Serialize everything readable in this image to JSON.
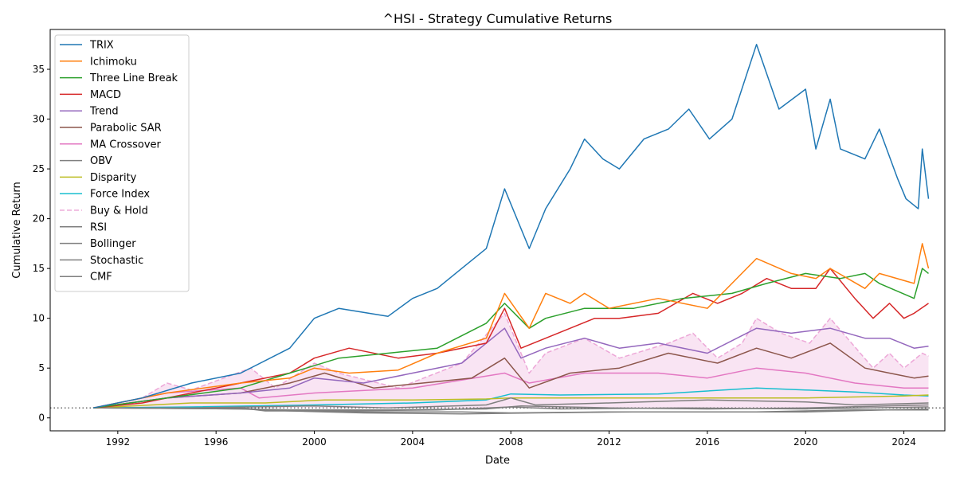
{
  "chart_data": {
    "type": "line",
    "title": "^HSI - Strategy Cumulative Returns",
    "xlabel": "Date",
    "ylabel": "Cumulative Return",
    "x_range": [
      "1989-04-01",
      "2025-09-01"
    ],
    "ylim": [
      -1.3,
      39.0
    ],
    "x_ticks": [
      "1992",
      "1996",
      "2000",
      "2004",
      "2008",
      "2012",
      "2016",
      "2020",
      "2024"
    ],
    "y_ticks": [
      "0",
      "5",
      "10",
      "15",
      "20",
      "25",
      "30",
      "35"
    ],
    "reference_line": {
      "y": 1.0,
      "style": "dotted",
      "color": "#666666"
    },
    "fill_between": {
      "upper": "Buy & Hold",
      "lower": 1.0,
      "color": "#e377c2",
      "opacity": 0.2
    },
    "legend_position": "upper left",
    "grid": false,
    "series": [
      {
        "name": "TRIX",
        "color": "#1f77b4",
        "style": "solid",
        "x": [
          "1991-01",
          "1993-01",
          "1995-01",
          "1997-01",
          "1999-01",
          "2000-01",
          "2001-01",
          "2003-01",
          "2004-01",
          "2005-01",
          "2006-01",
          "2007-01",
          "2007-10",
          "2008-10",
          "2009-06",
          "2010-06",
          "2011-01",
          "2011-10",
          "2012-06",
          "2013-06",
          "2014-06",
          "2015-04",
          "2016-02",
          "2017-01",
          "2018-01",
          "2018-12",
          "2020-01",
          "2020-06",
          "2021-01",
          "2021-06",
          "2022-06",
          "2023-01",
          "2023-10",
          "2024-02",
          "2024-08",
          "2024-10",
          "2025-01"
        ],
        "y": [
          1.0,
          2.0,
          3.5,
          4.5,
          7.0,
          10.0,
          11.0,
          10.2,
          12.0,
          13.0,
          15.0,
          17.0,
          23.0,
          17.0,
          21.0,
          25.0,
          28.0,
          26.0,
          25.0,
          28.0,
          29.0,
          31.0,
          28.0,
          30.0,
          37.5,
          31.0,
          33.0,
          27.0,
          32.0,
          27.0,
          26.0,
          29.0,
          24.0,
          22.0,
          21.0,
          27.0,
          22.0
        ]
      },
      {
        "name": "Ichimoku",
        "color": "#ff7f0e",
        "style": "solid",
        "x": [
          "1991-01",
          "1994-01",
          "1997-01",
          "1999-01",
          "2000-01",
          "2001-06",
          "2003-06",
          "2005-01",
          "2007-01",
          "2007-10",
          "2008-10",
          "2009-06",
          "2010-06",
          "2011-01",
          "2012-01",
          "2014-01",
          "2016-01",
          "2018-01",
          "2019-06",
          "2020-06",
          "2021-01",
          "2022-06",
          "2023-01",
          "2024-06",
          "2024-10",
          "2025-01"
        ],
        "y": [
          1.0,
          2.5,
          3.5,
          4.0,
          5.0,
          4.5,
          4.8,
          6.5,
          8.0,
          12.5,
          9.0,
          12.5,
          11.5,
          12.5,
          11.0,
          12.0,
          11.0,
          16.0,
          14.5,
          14.0,
          15.0,
          13.0,
          14.5,
          13.5,
          17.5,
          15.0
        ]
      },
      {
        "name": "Three Line Break",
        "color": "#2ca02c",
        "style": "solid",
        "x": [
          "1991-01",
          "1994-01",
          "1997-01",
          "1999-01",
          "2001-01",
          "2003-01",
          "2005-01",
          "2007-01",
          "2007-10",
          "2008-10",
          "2009-06",
          "2011-01",
          "2013-01",
          "2015-01",
          "2017-01",
          "2018-06",
          "2020-01",
          "2021-06",
          "2022-06",
          "2023-01",
          "2024-06",
          "2024-10",
          "2025-01"
        ],
        "y": [
          1.0,
          2.0,
          3.0,
          4.5,
          6.0,
          6.5,
          7.0,
          9.5,
          11.5,
          9.0,
          10.0,
          11.0,
          11.0,
          12.0,
          12.5,
          13.5,
          14.5,
          14.0,
          14.5,
          13.5,
          12.0,
          15.0,
          14.5
        ]
      },
      {
        "name": "MACD",
        "color": "#d62728",
        "style": "solid",
        "x": [
          "1991-01",
          "1993-01",
          "1995-01",
          "1997-01",
          "1999-01",
          "2000-01",
          "2001-06",
          "2003-06",
          "2005-01",
          "2007-01",
          "2007-10",
          "2008-06",
          "2009-06",
          "2010-06",
          "2011-06",
          "2012-06",
          "2014-01",
          "2015-06",
          "2016-06",
          "2017-06",
          "2018-06",
          "2019-06",
          "2020-06",
          "2021-01",
          "2022-01",
          "2022-10",
          "2023-06",
          "2024-01",
          "2024-06",
          "2025-01"
        ],
        "y": [
          1.0,
          1.5,
          2.5,
          3.5,
          4.5,
          6.0,
          7.0,
          6.0,
          6.5,
          7.5,
          11.0,
          7.0,
          8.0,
          9.0,
          10.0,
          10.0,
          10.5,
          12.5,
          11.5,
          12.5,
          14.0,
          13.0,
          13.0,
          15.0,
          12.0,
          10.0,
          11.5,
          10.0,
          10.5,
          11.5
        ]
      },
      {
        "name": "Trend",
        "color": "#9467bd",
        "style": "solid",
        "x": [
          "1991-01",
          "1994-01",
          "1997-01",
          "1999-01",
          "2000-01",
          "2002-01",
          "2004-01",
          "2006-01",
          "2007-10",
          "2008-06",
          "2009-06",
          "2011-01",
          "2012-06",
          "2014-01",
          "2016-01",
          "2018-01",
          "2019-06",
          "2021-01",
          "2022-06",
          "2023-06",
          "2024-06",
          "2025-01"
        ],
        "y": [
          1.0,
          2.0,
          2.5,
          3.0,
          4.0,
          3.5,
          4.5,
          5.5,
          9.0,
          6.0,
          7.0,
          8.0,
          7.0,
          7.5,
          6.5,
          9.0,
          8.5,
          9.0,
          8.0,
          8.0,
          7.0,
          7.2
        ]
      },
      {
        "name": "Parabolic SAR",
        "color": "#8c564b",
        "style": "solid",
        "x": [
          "1991-01",
          "1994-01",
          "1997-01",
          "1999-01",
          "2000-06",
          "2002-06",
          "2004-06",
          "2006-06",
          "2007-10",
          "2008-10",
          "2010-06",
          "2012-06",
          "2014-06",
          "2016-06",
          "2018-01",
          "2019-06",
          "2021-01",
          "2022-06",
          "2023-06",
          "2024-06",
          "2025-01"
        ],
        "y": [
          1.0,
          2.0,
          2.5,
          3.5,
          4.5,
          3.0,
          3.5,
          4.0,
          6.0,
          3.0,
          4.5,
          5.0,
          6.5,
          5.5,
          7.0,
          6.0,
          7.5,
          5.0,
          4.5,
          4.0,
          4.2
        ]
      },
      {
        "name": "MA Crossover",
        "color": "#e377c2",
        "style": "solid",
        "x": [
          "1991-01",
          "1994-01",
          "1997-01",
          "1997-10",
          "2000-01",
          "2004-01",
          "2007-10",
          "2008-10",
          "2011-01",
          "2014-01",
          "2016-01",
          "2018-01",
          "2020-01",
          "2022-01",
          "2024-01",
          "2025-01"
        ],
        "y": [
          1.0,
          2.5,
          3.0,
          2.0,
          2.5,
          3.0,
          4.5,
          3.5,
          4.5,
          4.5,
          4.0,
          5.0,
          4.5,
          3.5,
          3.0,
          3.0
        ]
      },
      {
        "name": "OBV",
        "color": "#7f7f7f",
        "style": "solid",
        "x": [
          "1991-01",
          "1995-01",
          "2000-01",
          "2003-01",
          "2007-01",
          "2008-01",
          "2009-01",
          "2012-01",
          "2016-01",
          "2020-01",
          "2022-01",
          "2025-01"
        ],
        "y": [
          1.0,
          1.0,
          1.2,
          1.0,
          1.3,
          2.0,
          1.3,
          1.5,
          1.8,
          1.6,
          1.3,
          1.5
        ]
      },
      {
        "name": "Disparity",
        "color": "#bcbd22",
        "style": "solid",
        "x": [
          "1991-01",
          "1995-01",
          "1998-01",
          "2000-06",
          "2004-01",
          "2007-01",
          "2008-01",
          "2009-01",
          "2012-01",
          "2016-01",
          "2020-01",
          "2024-01",
          "2025-01"
        ],
        "y": [
          1.0,
          1.5,
          1.5,
          1.8,
          1.8,
          1.9,
          2.0,
          2.0,
          2.0,
          2.0,
          2.0,
          2.2,
          2.3
        ]
      },
      {
        "name": "Force Index",
        "color": "#17becf",
        "style": "solid",
        "x": [
          "1991-01",
          "1995-01",
          "2000-01",
          "2004-01",
          "2007-01",
          "2008-01",
          "2010-01",
          "2014-01",
          "2018-01",
          "2020-01",
          "2022-01",
          "2024-01",
          "2025-01"
        ],
        "y": [
          1.0,
          1.1,
          1.3,
          1.5,
          1.8,
          2.4,
          2.3,
          2.4,
          3.0,
          2.8,
          2.6,
          2.3,
          2.2
        ]
      },
      {
        "name": "Buy & Hold",
        "color": "#e377c2",
        "style": "dashed",
        "x": [
          "1991-01",
          "1993-01",
          "1994-01",
          "1995-01",
          "1997-06",
          "1998-06",
          "2000-01",
          "2001-01",
          "2003-06",
          "2006-01",
          "2007-10",
          "2008-10",
          "2009-06",
          "2011-01",
          "2012-06",
          "2014-06",
          "2015-06",
          "2016-06",
          "2017-06",
          "2018-01",
          "2019-01",
          "2020-03",
          "2021-01",
          "2022-10",
          "2023-06",
          "2024-01",
          "2024-10",
          "2025-01"
        ],
        "y": [
          1.0,
          2.0,
          3.5,
          2.8,
          5.0,
          3.0,
          5.5,
          4.5,
          3.0,
          5.5,
          10.5,
          4.5,
          6.5,
          8.0,
          6.0,
          7.5,
          8.5,
          6.0,
          7.5,
          10.0,
          8.5,
          7.5,
          10.0,
          5.0,
          6.5,
          5.0,
          6.5,
          6.2
        ]
      },
      {
        "name": "RSI",
        "color": "#7f7f7f",
        "style": "solid",
        "x": [
          "1991-01",
          "1997-01",
          "1998-01",
          "2001-01",
          "2005-01",
          "2008-01",
          "2010-01",
          "2015-01",
          "2020-01",
          "2025-01"
        ],
        "y": [
          1.0,
          1.0,
          0.7,
          0.7,
          0.8,
          1.1,
          0.9,
          1.0,
          0.9,
          1.1
        ]
      },
      {
        "name": "Bollinger",
        "color": "#7f7f7f",
        "style": "solid",
        "x": [
          "1991-01",
          "1997-01",
          "1998-01",
          "2002-01",
          "2006-01",
          "2008-01",
          "2012-01",
          "2016-01",
          "2020-01",
          "2025-01"
        ],
        "y": [
          1.0,
          1.0,
          0.8,
          0.6,
          0.6,
          0.5,
          0.6,
          0.6,
          0.6,
          0.9
        ]
      },
      {
        "name": "Stochastic",
        "color": "#7f7f7f",
        "style": "solid",
        "x": [
          "1991-01",
          "1997-01",
          "1999-01",
          "2002-01",
          "2006-01",
          "2009-01",
          "2013-01",
          "2018-01",
          "2022-01",
          "2025-01"
        ],
        "y": [
          1.0,
          0.9,
          0.7,
          0.5,
          0.4,
          0.5,
          0.6,
          0.6,
          0.8,
          0.8
        ]
      },
      {
        "name": "CMF",
        "color": "#7f7f7f",
        "style": "solid",
        "x": [
          "1991-01",
          "1997-01",
          "1999-01",
          "2003-01",
          "2007-01",
          "2008-06",
          "2012-01",
          "2016-01",
          "2020-01",
          "2025-01"
        ],
        "y": [
          1.0,
          0.9,
          0.8,
          0.8,
          0.9,
          1.2,
          1.0,
          0.9,
          1.0,
          1.3
        ]
      }
    ]
  }
}
